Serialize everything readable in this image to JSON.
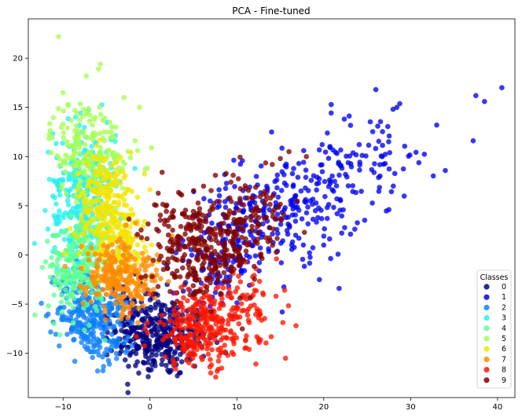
{
  "chart_data": {
    "type": "scatter",
    "title": "PCA - Fine-tuned",
    "xlabel": "",
    "ylabel": "",
    "xlim": [
      -14,
      42
    ],
    "ylim": [
      -14.5,
      24
    ],
    "xticks": [
      -10,
      0,
      10,
      20,
      30,
      40
    ],
    "yticks": [
      -10,
      -5,
      0,
      5,
      10,
      15,
      20
    ],
    "grid": false,
    "legend": {
      "title": "Classes",
      "position": "lower-right"
    },
    "series": [
      {
        "name": "0",
        "color": "#000080",
        "clusters": [
          {
            "cx": 1.5,
            "cy": -8.5,
            "sx": 2.6,
            "sy": 2.0,
            "n": 300
          },
          {
            "cx": -1.5,
            "cy": -6.5,
            "sx": 1.8,
            "sy": 1.8,
            "n": 90
          }
        ]
      },
      {
        "name": "1",
        "color": "#0000f1",
        "clusters": [
          {
            "cx": 10,
            "cy": 2,
            "sx": 3,
            "sy": 2.5,
            "n": 140
          },
          {
            "cx": 17,
            "cy": 5,
            "sx": 3.5,
            "sy": 2.8,
            "n": 180
          },
          {
            "cx": 25,
            "cy": 10,
            "sx": 4,
            "sy": 2.2,
            "n": 80
          },
          {
            "cx": 7,
            "cy": -3,
            "sx": 2,
            "sy": 2,
            "n": 40
          }
        ],
        "points": [
          [
            40.5,
            17.0
          ],
          [
            37.5,
            16.2
          ],
          [
            38.5,
            15.6
          ],
          [
            26.0,
            16.8
          ],
          [
            37.2,
            11.6
          ],
          [
            33.0,
            13.2
          ],
          [
            20.0,
            1.0
          ],
          [
            19.5,
            -2.5
          ],
          [
            14.0,
            12.5
          ],
          [
            28.0,
            7.0
          ]
        ]
      },
      {
        "name": "2",
        "color": "#0d80ff",
        "clusters": [
          {
            "cx": -7.5,
            "cy": -5.5,
            "sx": 1.6,
            "sy": 2.4,
            "n": 230
          },
          {
            "cx": -4.5,
            "cy": -7.5,
            "sx": 1.5,
            "sy": 2,
            "n": 80
          }
        ]
      },
      {
        "name": "3",
        "color": "#29f0f0",
        "clusters": [
          {
            "cx": -7.5,
            "cy": 7.5,
            "sx": 1.8,
            "sy": 3,
            "n": 230
          },
          {
            "cx": -8.5,
            "cy": 3,
            "sx": 1.6,
            "sy": 2.5,
            "n": 90
          }
        ]
      },
      {
        "name": "4",
        "color": "#61ff94",
        "clusters": [
          {
            "cx": -8.5,
            "cy": -1.5,
            "sx": 1.6,
            "sy": 2.5,
            "n": 190
          },
          {
            "cx": -7,
            "cy": 2,
            "sx": 1.6,
            "sy": 2.5,
            "n": 80
          }
        ]
      },
      {
        "name": "5",
        "color": "#a4ff53",
        "clusters": [
          {
            "cx": -7.5,
            "cy": 11,
            "sx": 2,
            "sy": 2.5,
            "n": 150
          },
          {
            "cx": -5,
            "cy": 8,
            "sx": 1.8,
            "sy": 2.5,
            "n": 60
          }
        ],
        "points": [
          [
            -10.5,
            22.2
          ],
          [
            -5.7,
            19.4
          ],
          [
            -5.9,
            18.9
          ],
          [
            -3.0,
            16.0
          ],
          [
            -1.2,
            15.0
          ],
          [
            -10.0,
            16.5
          ]
        ]
      },
      {
        "name": "6",
        "color": "#f5e400",
        "clusters": [
          {
            "cx": -5,
            "cy": 5,
            "sx": 1.8,
            "sy": 2.8,
            "n": 230
          },
          {
            "cx": -3,
            "cy": 1,
            "sx": 1.5,
            "sy": 2,
            "n": 100
          }
        ]
      },
      {
        "name": "7",
        "color": "#ff8b00",
        "clusters": [
          {
            "cx": -4,
            "cy": -2,
            "sx": 1.8,
            "sy": 1.8,
            "n": 190
          },
          {
            "cx": -1.5,
            "cy": -3,
            "sx": 1.2,
            "sy": 1.6,
            "n": 60
          }
        ]
      },
      {
        "name": "8",
        "color": "#ff1700",
        "clusters": [
          {
            "cx": 6,
            "cy": -7.5,
            "sx": 3,
            "sy": 2,
            "n": 260
          },
          {
            "cx": 10,
            "cy": -5.5,
            "sx": 2.5,
            "sy": 1.8,
            "n": 80
          }
        ],
        "points": [
          [
            15.6,
            -10.5
          ],
          [
            16.8,
            -7.2
          ],
          [
            14.5,
            -4.2
          ],
          [
            12.5,
            -8.5
          ],
          [
            7.0,
            -12.0
          ]
        ]
      },
      {
        "name": "9",
        "color": "#800000",
        "clusters": [
          {
            "cx": 6,
            "cy": 0,
            "sx": 2.8,
            "sy": 2.2,
            "n": 240
          },
          {
            "cx": 11,
            "cy": 3.5,
            "sx": 2.6,
            "sy": 2.3,
            "n": 130
          },
          {
            "cx": 3,
            "cy": 3,
            "sx": 1.8,
            "sy": 1.8,
            "n": 40
          }
        ],
        "points": [
          [
            16.0,
            10.5
          ],
          [
            18.0,
            10.0
          ],
          [
            15.0,
            9.8
          ],
          [
            3.5,
            6.2
          ]
        ]
      }
    ]
  }
}
